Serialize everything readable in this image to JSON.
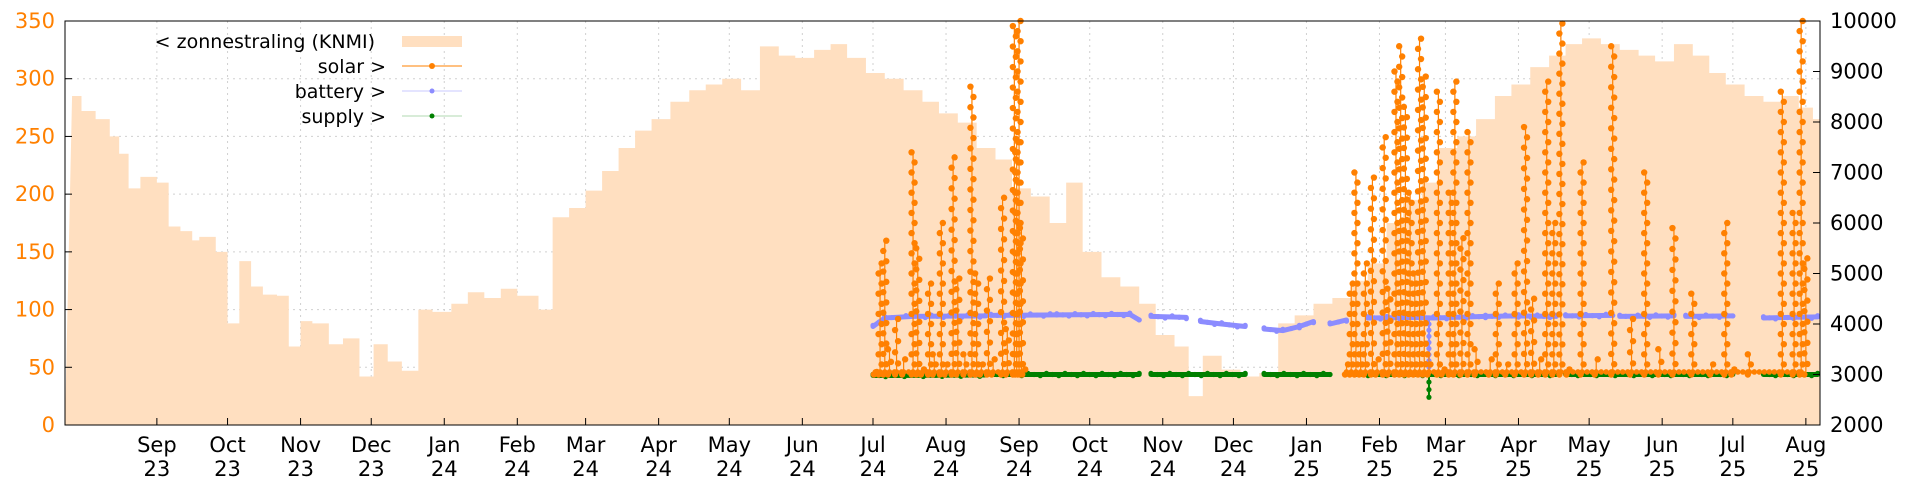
{
  "chart_data": {
    "type": "line",
    "title": "",
    "xlabel": "",
    "ylabel": "",
    "ylim_left": [
      0,
      350
    ],
    "ylim_right": [
      2000,
      10000
    ],
    "left_ticks": [
      "0",
      "50",
      "100",
      "150",
      "200",
      "250",
      "300",
      "350"
    ],
    "right_ticks": [
      "2000",
      "3000",
      "4000",
      "5000",
      "6000",
      "7000",
      "8000",
      "9000",
      "10000"
    ],
    "x_ticks": [
      {
        "month": "Sep",
        "year": "23"
      },
      {
        "month": "Oct",
        "year": "23"
      },
      {
        "month": "Nov",
        "year": "23"
      },
      {
        "month": "Dec",
        "year": "23"
      },
      {
        "month": "Jan",
        "year": "24"
      },
      {
        "month": "Feb",
        "year": "24"
      },
      {
        "month": "Mar",
        "year": "24"
      },
      {
        "month": "Apr",
        "year": "24"
      },
      {
        "month": "May",
        "year": "24"
      },
      {
        "month": "Jun",
        "year": "24"
      },
      {
        "month": "Jul",
        "year": "24"
      },
      {
        "month": "Aug",
        "year": "24"
      },
      {
        "month": "Sep",
        "year": "24"
      },
      {
        "month": "Oct",
        "year": "24"
      },
      {
        "month": "Nov",
        "year": "24"
      },
      {
        "month": "Dec",
        "year": "24"
      },
      {
        "month": "Jan",
        "year": "25"
      },
      {
        "month": "Feb",
        "year": "25"
      },
      {
        "month": "Mar",
        "year": "25"
      },
      {
        "month": "Apr",
        "year": "25"
      },
      {
        "month": "May",
        "year": "25"
      },
      {
        "month": "Jun",
        "year": "25"
      },
      {
        "month": "Jul",
        "year": "25"
      },
      {
        "month": "Aug",
        "year": "25"
      }
    ],
    "grid": true,
    "legend_position": "top-left",
    "colors": {
      "sun": "#ffdfc0",
      "solar": "#ff8000",
      "battery": "#8c8cff",
      "supply": "#008000"
    },
    "series": [
      {
        "name": "< zonnestraling (KNMI)",
        "axis": "left",
        "style": "area",
        "points": [
          [
            "2023-08-10",
            285
          ],
          [
            "2023-08-14",
            272
          ],
          [
            "2023-08-20",
            265
          ],
          [
            "2023-08-26",
            250
          ],
          [
            "2023-08-30",
            235
          ],
          [
            "2023-09-03",
            205
          ],
          [
            "2023-09-08",
            215
          ],
          [
            "2023-09-15",
            210
          ],
          [
            "2023-09-20",
            172
          ],
          [
            "2023-09-25",
            168
          ],
          [
            "2023-09-30",
            160
          ],
          [
            "2023-10-03",
            163
          ],
          [
            "2023-10-10",
            150
          ],
          [
            "2023-10-15",
            88
          ],
          [
            "2023-10-20",
            142
          ],
          [
            "2023-10-25",
            120
          ],
          [
            "2023-10-30",
            113
          ],
          [
            "2023-11-05",
            112
          ],
          [
            "2023-11-10",
            68
          ],
          [
            "2023-11-15",
            90
          ],
          [
            "2023-11-20",
            88
          ],
          [
            "2023-11-27",
            70
          ],
          [
            "2023-12-03",
            75
          ],
          [
            "2023-12-10",
            42
          ],
          [
            "2023-12-16",
            70
          ],
          [
            "2023-12-22",
            55
          ],
          [
            "2023-12-28",
            47
          ],
          [
            "2024-01-04",
            100
          ],
          [
            "2024-01-10",
            98
          ],
          [
            "2024-01-18",
            105
          ],
          [
            "2024-01-25",
            115
          ],
          [
            "2024-02-01",
            110
          ],
          [
            "2024-02-08",
            118
          ],
          [
            "2024-02-15",
            112
          ],
          [
            "2024-02-24",
            100
          ],
          [
            "2024-03-01",
            180
          ],
          [
            "2024-03-08",
            188
          ],
          [
            "2024-03-15",
            203
          ],
          [
            "2024-03-22",
            220
          ],
          [
            "2024-03-29",
            240
          ],
          [
            "2024-04-05",
            255
          ],
          [
            "2024-04-12",
            265
          ],
          [
            "2024-04-20",
            280
          ],
          [
            "2024-04-28",
            290
          ],
          [
            "2024-05-05",
            295
          ],
          [
            "2024-05-12",
            300
          ],
          [
            "2024-05-20",
            290
          ],
          [
            "2024-05-28",
            328
          ],
          [
            "2024-06-05",
            320
          ],
          [
            "2024-06-12",
            318
          ],
          [
            "2024-06-20",
            325
          ],
          [
            "2024-06-27",
            330
          ],
          [
            "2024-07-04",
            318
          ],
          [
            "2024-07-12",
            305
          ],
          [
            "2024-07-20",
            300
          ],
          [
            "2024-07-28",
            290
          ],
          [
            "2024-08-05",
            280
          ],
          [
            "2024-08-12",
            270
          ],
          [
            "2024-08-20",
            262
          ],
          [
            "2024-08-28",
            240
          ],
          [
            "2024-09-05",
            230
          ],
          [
            "2024-09-12",
            205
          ],
          [
            "2024-09-20",
            198
          ],
          [
            "2024-09-28",
            175
          ],
          [
            "2024-10-05",
            210
          ],
          [
            "2024-10-12",
            150
          ],
          [
            "2024-10-20",
            128
          ],
          [
            "2024-10-28",
            120
          ],
          [
            "2024-11-05",
            105
          ],
          [
            "2024-11-12",
            78
          ],
          [
            "2024-11-20",
            68
          ],
          [
            "2024-11-26",
            25
          ],
          [
            "2024-12-02",
            60
          ],
          [
            "2024-12-10",
            48
          ],
          [
            "2024-12-18",
            42
          ],
          [
            "2024-12-26",
            45
          ],
          [
            "2025-01-03",
            88
          ],
          [
            "2025-01-10",
            95
          ],
          [
            "2025-01-18",
            105
          ],
          [
            "2025-01-26",
            110
          ],
          [
            "2025-02-03",
            125
          ],
          [
            "2025-02-10",
            140
          ],
          [
            "2025-02-18",
            175
          ],
          [
            "2025-02-25",
            195
          ],
          [
            "2025-03-05",
            210
          ],
          [
            "2025-03-12",
            240
          ],
          [
            "2025-03-20",
            250
          ],
          [
            "2025-03-28",
            265
          ],
          [
            "2025-04-05",
            285
          ],
          [
            "2025-04-12",
            295
          ],
          [
            "2025-04-20",
            310
          ],
          [
            "2025-04-28",
            320
          ],
          [
            "2025-05-05",
            330
          ],
          [
            "2025-05-12",
            335
          ],
          [
            "2025-05-20",
            330
          ],
          [
            "2025-05-28",
            325
          ],
          [
            "2025-06-05",
            320
          ],
          [
            "2025-06-12",
            315
          ],
          [
            "2025-06-20",
            330
          ],
          [
            "2025-06-28",
            320
          ],
          [
            "2025-07-05",
            305
          ],
          [
            "2025-07-12",
            295
          ],
          [
            "2025-07-20",
            285
          ],
          [
            "2025-07-28",
            280
          ],
          [
            "2025-08-05",
            285
          ],
          [
            "2025-08-12",
            275
          ],
          [
            "2025-08-18",
            265
          ]
        ]
      },
      {
        "name": "solar >",
        "axis": "right",
        "style": "linespoints",
        "points": [
          [
            "2024-07-16",
            3050
          ],
          [
            "2024-07-18",
            5200
          ],
          [
            "2024-07-20",
            5650
          ],
          [
            "2024-07-22",
            3500
          ],
          [
            "2024-07-25",
            4100
          ],
          [
            "2024-07-28",
            3300
          ],
          [
            "2024-08-01",
            7400
          ],
          [
            "2024-08-03",
            5500
          ],
          [
            "2024-08-05",
            3100
          ],
          [
            "2024-08-08",
            4800
          ],
          [
            "2024-08-10",
            3400
          ],
          [
            "2024-08-13",
            6000
          ],
          [
            "2024-08-15",
            3200
          ],
          [
            "2024-08-18",
            7300
          ],
          [
            "2024-08-20",
            4900
          ],
          [
            "2024-08-23",
            3400
          ],
          [
            "2024-08-26",
            8700
          ],
          [
            "2024-08-28",
            5000
          ],
          [
            "2024-08-30",
            3200
          ],
          [
            "2024-09-02",
            4900
          ],
          [
            "2024-09-04",
            3300
          ],
          [
            "2024-09-08",
            6500
          ],
          [
            "2024-09-10",
            3900
          ],
          [
            "2024-09-13",
            9900
          ],
          [
            "2024-09-14",
            7600
          ],
          [
            "2024-09-15",
            10000
          ],
          [
            "2024-09-16",
            5900
          ],
          [
            "2024-09-17",
            3100
          ],
          [
            "2025-02-01",
            3200
          ],
          [
            "2025-02-03",
            4800
          ],
          [
            "2025-02-05",
            7000
          ],
          [
            "2025-02-07",
            3600
          ],
          [
            "2025-02-09",
            5200
          ],
          [
            "2025-02-12",
            6900
          ],
          [
            "2025-02-14",
            3300
          ],
          [
            "2025-02-17",
            7700
          ],
          [
            "2025-02-19",
            4700
          ],
          [
            "2025-02-22",
            9000
          ],
          [
            "2025-02-24",
            9500
          ],
          [
            "2025-02-26",
            8300
          ],
          [
            "2025-02-28",
            6600
          ],
          [
            "2025-03-02",
            5000
          ],
          [
            "2025-03-04",
            9650
          ],
          [
            "2025-03-06",
            8900
          ],
          [
            "2025-03-08",
            3400
          ],
          [
            "2025-03-12",
            8600
          ],
          [
            "2025-03-14",
            3100
          ],
          [
            "2025-03-17",
            6600
          ],
          [
            "2025-03-19",
            8800
          ],
          [
            "2025-03-22",
            5700
          ],
          [
            "2025-03-25",
            7800
          ],
          [
            "2025-03-28",
            3500
          ],
          [
            "2025-04-03",
            3300
          ],
          [
            "2025-04-06",
            4800
          ],
          [
            "2025-04-10",
            3200
          ],
          [
            "2025-04-14",
            5200
          ],
          [
            "2025-04-18",
            7900
          ],
          [
            "2025-04-21",
            4500
          ],
          [
            "2025-04-24",
            3300
          ],
          [
            "2025-04-27",
            8800
          ],
          [
            "2025-04-30",
            6000
          ],
          [
            "2025-05-03",
            9950
          ],
          [
            "2025-05-06",
            3100
          ],
          [
            "2025-05-12",
            7200
          ],
          [
            "2025-05-18",
            3300
          ],
          [
            "2025-05-25",
            9500
          ],
          [
            "2025-06-02",
            4100
          ],
          [
            "2025-06-08",
            7000
          ],
          [
            "2025-06-14",
            3500
          ],
          [
            "2025-06-20",
            5900
          ],
          [
            "2025-06-28",
            4600
          ],
          [
            "2025-07-06",
            3200
          ],
          [
            "2025-07-12",
            6000
          ],
          [
            "2025-07-15",
            3100
          ],
          [
            "2025-07-22",
            3400
          ],
          [
            "2025-08-05",
            8600
          ],
          [
            "2025-08-10",
            6200
          ],
          [
            "2025-08-13",
            10000
          ],
          [
            "2025-08-15",
            5300
          ]
        ]
      },
      {
        "name": "battery >",
        "axis": "right",
        "style": "points",
        "segments": [
          [
            [
              "2024-07-15",
              3950
            ],
            [
              "2024-07-20",
              4120
            ],
            [
              "2024-08-01",
              4150
            ],
            [
              "2024-09-01",
              4160
            ]
          ],
          [
            [
              "2024-09-03",
              4170
            ],
            [
              "2024-10-01",
              4180
            ],
            [
              "2024-11-01",
              4190
            ],
            [
              "2024-11-05",
              4080
            ]
          ],
          [
            [
              "2024-11-10",
              4150
            ],
            [
              "2024-11-25",
              4130
            ]
          ],
          [
            [
              "2024-12-01",
              4050
            ],
            [
              "2024-12-10",
              4000
            ],
            [
              "2024-12-20",
              3950
            ]
          ],
          [
            [
              "2024-12-28",
              3900
            ],
            [
              "2025-01-05",
              3870
            ],
            [
              "2025-01-12",
              3950
            ],
            [
              "2025-01-18",
              4050
            ]
          ],
          [
            [
              "2025-01-25",
              4000
            ],
            [
              "2025-02-01",
              4080
            ]
          ],
          [
            [
              "2025-02-10",
              4120
            ],
            [
              "2025-03-01",
              4130
            ],
            [
              "2025-03-10",
              4120
            ],
            [
              "2025-04-01",
              4150
            ],
            [
              "2025-04-15",
              4160
            ],
            [
              "2025-05-01",
              4150
            ]
          ],
          [
            [
              "2025-05-05",
              4160
            ],
            [
              "2025-05-25",
              4170
            ]
          ],
          [
            [
              "2025-05-28",
              4150
            ],
            [
              "2025-06-20",
              4160
            ]
          ],
          [
            [
              "2025-06-25",
              4150
            ],
            [
              "2025-07-15",
              4160
            ]
          ],
          [
            [
              "2025-07-28",
              4120
            ],
            [
              "2025-08-20",
              4140
            ]
          ]
        ],
        "dip": [
          [
            "2025-03-08",
            4120
          ],
          [
            "2025-03-08",
            3150
          ]
        ]
      },
      {
        "name": "supply >",
        "axis": "right",
        "style": "points",
        "segments": [
          [
            [
              "2024-07-15",
              2980
            ],
            [
              "2024-09-01",
              2990
            ]
          ],
          [
            [
              "2024-09-03",
              3000
            ],
            [
              "2024-11-05",
              3000
            ]
          ],
          [
            [
              "2024-11-10",
              3000
            ],
            [
              "2024-12-20",
              3000
            ]
          ],
          [
            [
              "2024-12-28",
              3000
            ],
            [
              "2025-01-25",
              3000
            ]
          ],
          [
            [
              "2025-02-05",
              3000
            ],
            [
              "2025-05-01",
              3000
            ]
          ],
          [
            [
              "2025-05-05",
              3000
            ],
            [
              "2025-07-15",
              3000
            ]
          ],
          [
            [
              "2025-07-28",
              3000
            ],
            [
              "2025-08-20",
              3000
            ]
          ]
        ],
        "dip": [
          [
            "2025-03-08",
            3000
          ],
          [
            "2025-03-08",
            2550
          ]
        ]
      }
    ]
  }
}
